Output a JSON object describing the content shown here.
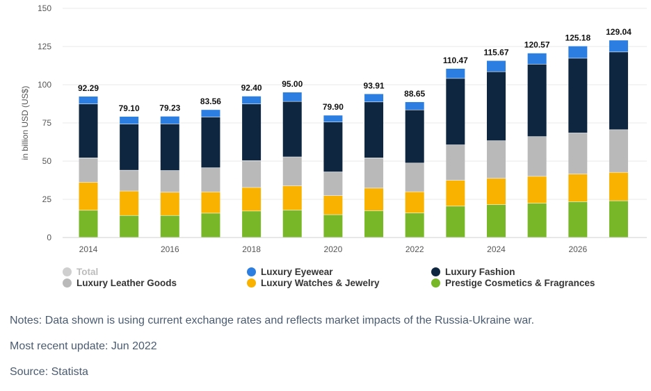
{
  "chart_data": {
    "type": "bar",
    "stacked": true,
    "categories": [
      "2014",
      "2015",
      "2016",
      "2017",
      "2018",
      "2019",
      "2020",
      "2021",
      "2022",
      "2023",
      "2024",
      "2025",
      "2026",
      "2027"
    ],
    "x_tick_labels": [
      "2014",
      "",
      "2016",
      "",
      "2018",
      "",
      "2020",
      "",
      "2022",
      "",
      "2024",
      "",
      "2026",
      ""
    ],
    "y_ticks": [
      "0",
      "25",
      "50",
      "75",
      "100",
      "125",
      "150"
    ],
    "ylim": [
      0,
      150
    ],
    "ylabel": "in billion USD (US$)",
    "xlabel": "",
    "title": "",
    "grid": true,
    "legend_position": "bottom",
    "totals": [
      "92.29",
      "79.10",
      "79.23",
      "83.56",
      "92.40",
      "95.00",
      "79.90",
      "93.91",
      "88.65",
      "110.47",
      "115.67",
      "120.57",
      "125.18",
      "129.04"
    ],
    "series": [
      {
        "name": "Prestige Cosmetics & Fragrances",
        "color": "#78b828",
        "values": [
          17.7,
          14.3,
          14.3,
          15.8,
          17.2,
          17.8,
          14.8,
          17.4,
          15.9,
          20.4,
          21.4,
          22.3,
          23.3,
          23.9
        ]
      },
      {
        "name": "Luxury Watches & Jewelry",
        "color": "#f9b200",
        "values": [
          18.3,
          16.0,
          15.2,
          13.9,
          15.4,
          15.9,
          12.5,
          14.8,
          13.9,
          16.9,
          17.2,
          17.6,
          18.1,
          18.6
        ]
      },
      {
        "name": "Luxury Leather Goods",
        "color": "#b9b9b9",
        "values": [
          16.0,
          13.6,
          14.2,
          15.8,
          17.6,
          18.9,
          15.5,
          19.8,
          18.8,
          23.2,
          24.6,
          26.0,
          26.9,
          27.9
        ]
      },
      {
        "name": "Luxury Fashion",
        "color": "#0f2640",
        "values": [
          35.3,
          30.2,
          30.5,
          33.2,
          37.1,
          36.3,
          32.7,
          36.6,
          34.8,
          43.5,
          45.2,
          47.4,
          48.9,
          50.9
        ]
      },
      {
        "name": "Luxury Eyewear",
        "color": "#2c7ee0",
        "values": [
          4.99,
          5.0,
          5.03,
          4.86,
          5.1,
          6.1,
          4.4,
          5.31,
          5.25,
          6.47,
          7.27,
          7.27,
          7.98,
          7.74
        ]
      }
    ]
  },
  "legend": [
    {
      "label": "Total",
      "color": "#cfcfcf",
      "disabled": true
    },
    {
      "label": "Luxury Leather Goods",
      "color": "#b9b9b9",
      "disabled": false
    },
    {
      "label": "Luxury Eyewear",
      "color": "#2c7ee0",
      "disabled": false
    },
    {
      "label": "Luxury Watches & Jewelry",
      "color": "#f9b200",
      "disabled": false
    },
    {
      "label": "Luxury Fashion",
      "color": "#0f2640",
      "disabled": false
    },
    {
      "label": "Prestige Cosmetics & Fragrances",
      "color": "#78b828",
      "disabled": false
    }
  ],
  "notes": {
    "notes_text": "Notes: Data shown is using current exchange rates and reflects market impacts of the Russia-Ukraine war.",
    "update_text": "Most recent update: Jun 2022",
    "source_text": "Source: Statista"
  }
}
